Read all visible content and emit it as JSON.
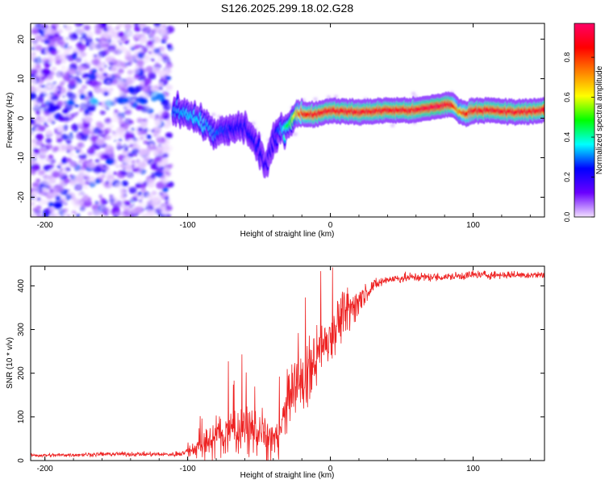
{
  "title": "S126.2025.299.18.02.G28",
  "colorbar": {
    "label": "Normalized spectral amplitude",
    "ticks": [
      "0.0",
      "0.2",
      "0.4",
      "0.6",
      "0.8"
    ],
    "tick_values": [
      0.0,
      0.2,
      0.4,
      0.6,
      0.8
    ],
    "range": [
      0.0,
      0.97
    ],
    "colors": [
      "#f2e0ff",
      "#6a00ff",
      "#0000ff",
      "#00ffff",
      "#00ff00",
      "#ffff00",
      "#ff8000",
      "#ff0000",
      "#ff0066"
    ]
  },
  "chart_data": [
    {
      "type": "heatmap",
      "name": "spectrogram",
      "xlabel": "Height of straight line (km)",
      "ylabel": "Frequency (Hz)",
      "xlim": [
        -210,
        150
      ],
      "ylim": [
        -25,
        24
      ],
      "xticks": [
        -200,
        -100,
        0,
        100
      ],
      "yticks": [
        -20,
        -10,
        0,
        10,
        20
      ],
      "noise_region_x": [
        -210,
        -112
      ],
      "ridge": {
        "x": [
          -110,
          -100,
          -90,
          -80,
          -70,
          -60,
          -50,
          -45,
          -40,
          -35,
          -30,
          -25,
          -20,
          -10,
          0,
          20,
          40,
          60,
          75,
          85,
          90,
          95,
          100,
          110,
          130,
          150
        ],
        "freq_hz": [
          2,
          1.5,
          -1,
          -4,
          -3,
          -2,
          -8,
          -12,
          -6,
          -3,
          -2,
          1,
          1,
          1,
          2,
          1.5,
          2,
          2,
          3,
          3.5,
          2,
          1,
          2,
          2,
          1.5,
          2
        ],
        "amplitude": [
          0.3,
          0.35,
          0.35,
          0.3,
          0.25,
          0.25,
          0.25,
          0.2,
          0.2,
          0.3,
          0.45,
          0.6,
          0.85,
          0.9,
          0.9,
          0.9,
          0.9,
          0.9,
          0.95,
          0.9,
          0.7,
          0.85,
          0.9,
          0.9,
          0.9,
          0.9
        ]
      }
    },
    {
      "type": "line",
      "name": "snr",
      "xlabel": "Height of straight line (km)",
      "ylabel": "SNR (10 * v/v)",
      "xlim": [
        -210,
        150
      ],
      "ylim": [
        0,
        445
      ],
      "xticks": [
        -200,
        -100,
        0,
        100
      ],
      "yticks": [
        0,
        100,
        200,
        300,
        400
      ],
      "color": "#ee2222",
      "series": [
        {
          "name": "SNR",
          "x": [
            -210,
            -200,
            -150,
            -110,
            -100,
            -90,
            -80,
            -70,
            -60,
            -50,
            -40,
            -35,
            -30,
            -20,
            -10,
            0,
            10,
            20,
            30,
            40,
            60,
            80,
            100,
            120,
            150
          ],
          "y": [
            12,
            12,
            15,
            14,
            20,
            35,
            55,
            70,
            75,
            65,
            50,
            70,
            140,
            180,
            240,
            290,
            340,
            370,
            400,
            415,
            420,
            420,
            425,
            425,
            425
          ],
          "noise": [
            6,
            6,
            7,
            7,
            15,
            40,
            60,
            75,
            80,
            70,
            55,
            70,
            90,
            100,
            90,
            80,
            70,
            40,
            20,
            15,
            15,
            12,
            15,
            12,
            12
          ]
        }
      ]
    }
  ]
}
